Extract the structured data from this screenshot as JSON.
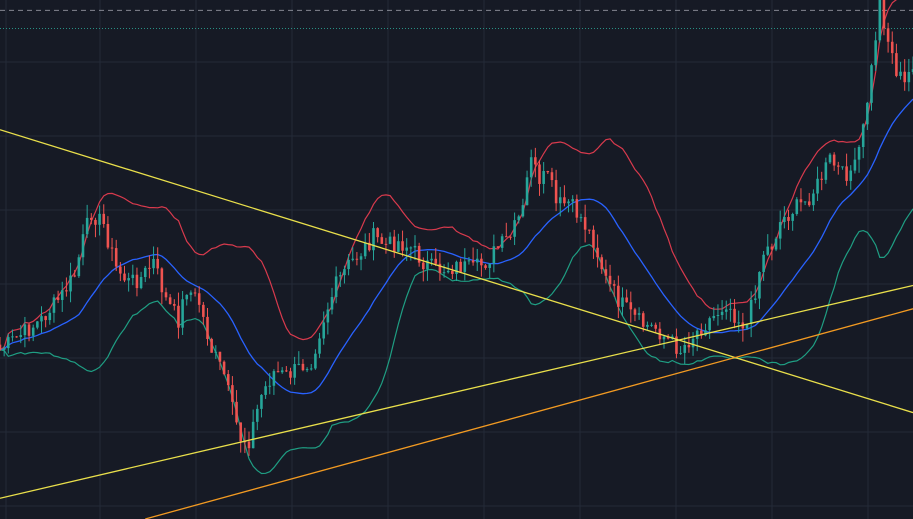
{
  "colors": {
    "background": "#161a25",
    "grid": "#242a38",
    "candle_up": "#26a69a",
    "candle_down": "#ef5350",
    "bb_upper": "#d83a4d",
    "bb_middle": "#2962ff",
    "bb_lower": "#1f9e83",
    "trendline_yellow": "#e9df4b",
    "trendline_orange": "#f29a22",
    "price_line": "#b2b5be",
    "alert_line": "#2a9d8f"
  },
  "chart_data": {
    "type": "candlestick",
    "title": "",
    "xlabel": "",
    "ylabel": "",
    "x_index_range": [
      0,
      220
    ],
    "ylim": [
      0,
      100
    ],
    "grid": true,
    "overlays": [
      "bollinger_bands",
      "trendlines"
    ],
    "series": [
      {
        "role": "bollinger_upper"
      },
      {
        "role": "bollinger_middle"
      },
      {
        "role": "bollinger_lower"
      }
    ],
    "trendlines": [
      {
        "color": "yellow",
        "from": [
          0,
          75.0
        ],
        "to": [
          220,
          20.5
        ]
      },
      {
        "color": "yellow",
        "from": [
          0,
          4.0
        ],
        "to": [
          220,
          45.0
        ]
      },
      {
        "color": "orange",
        "from": [
          35,
          0.0
        ],
        "to": [
          220,
          40.5
        ]
      }
    ],
    "horizontal_lines": [
      {
        "style": "dashed",
        "value": 98.0
      },
      {
        "style": "dotted",
        "value": 94.5
      }
    ]
  }
}
